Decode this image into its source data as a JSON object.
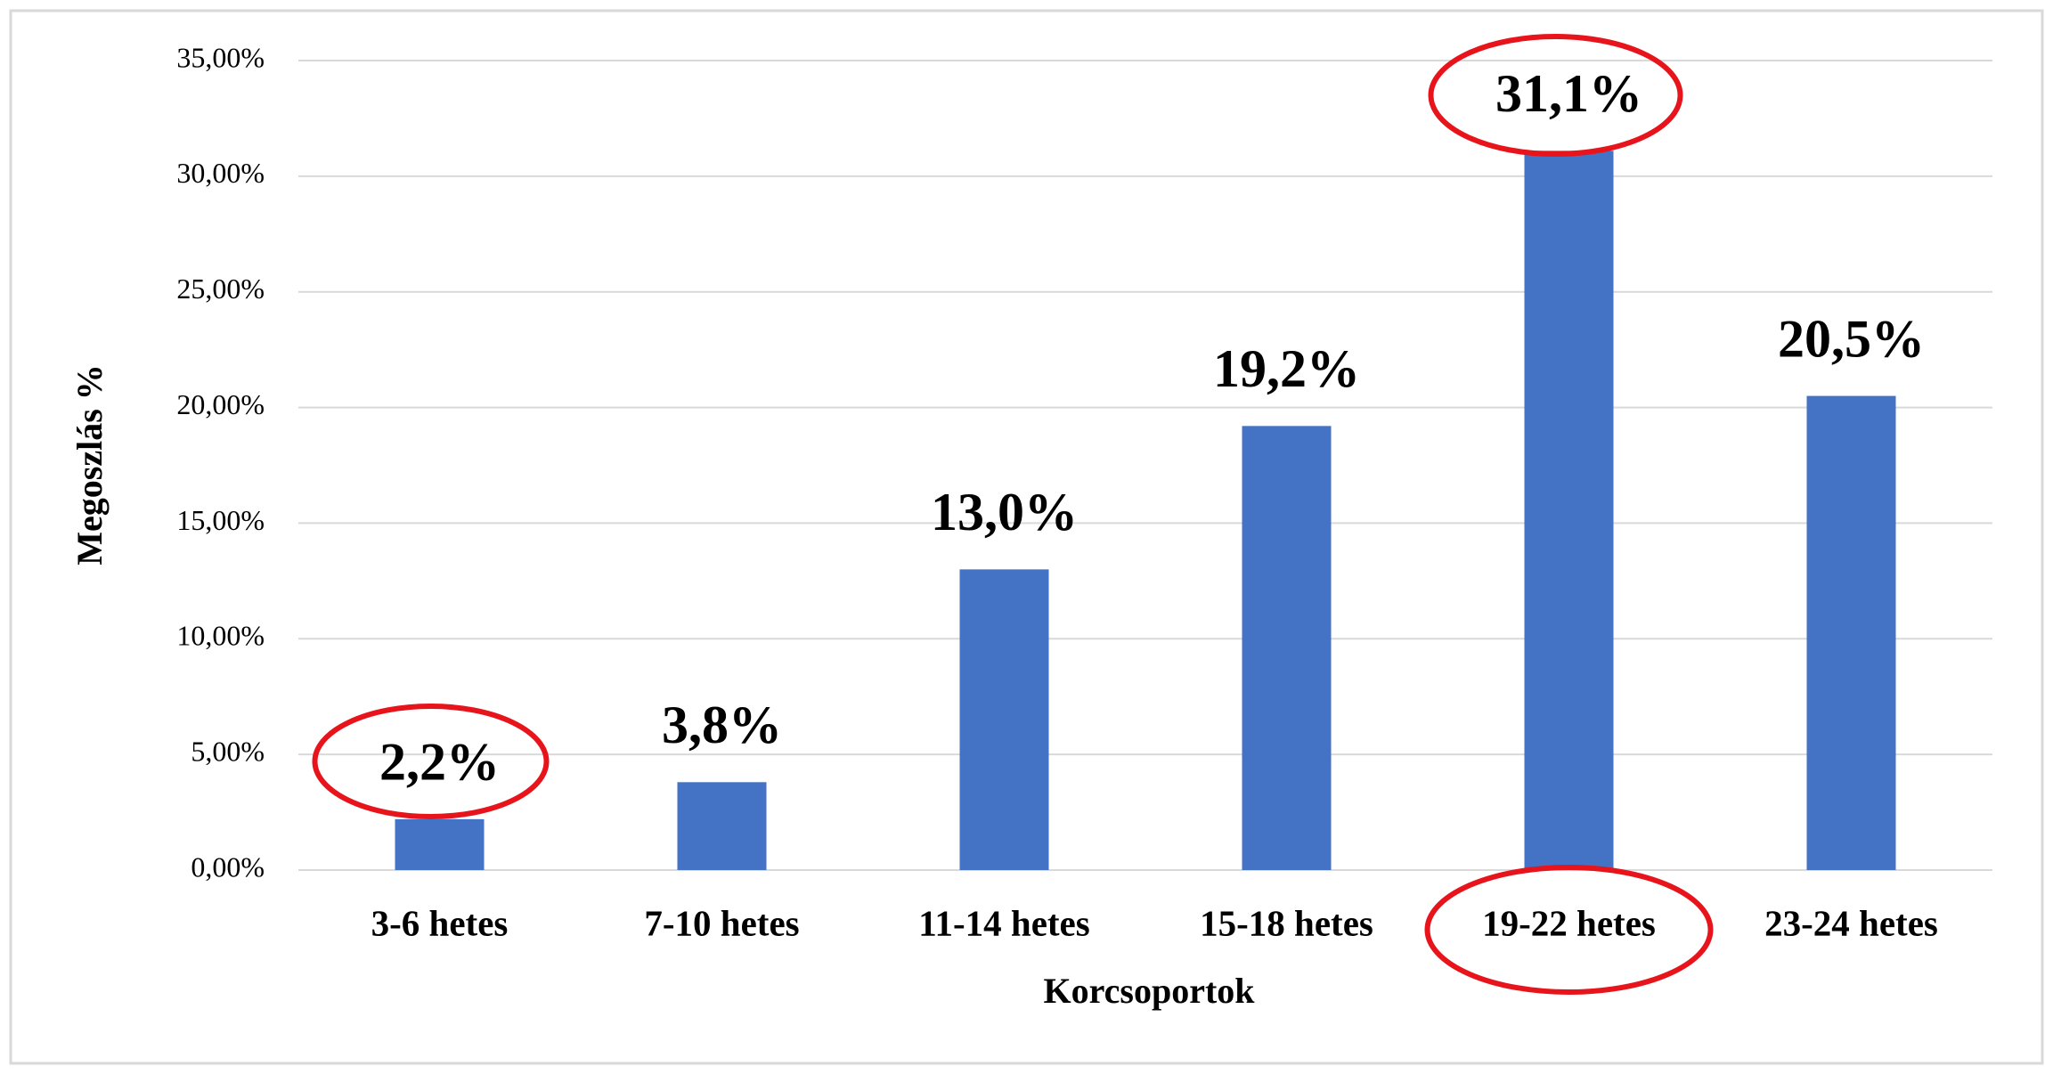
{
  "chart_data": {
    "type": "bar",
    "x_label": "Korcsoportok",
    "y_label": "Megoszlás %",
    "categories": [
      "3-6 hetes",
      "7-10 hetes",
      "11-14 hetes",
      "15-18 hetes",
      "19-22 hetes",
      "23-24 hetes"
    ],
    "values": [
      2.2,
      3.8,
      13.0,
      19.2,
      31.1,
      20.5
    ],
    "value_labels": [
      "2,2%",
      "3,8%",
      "13,0%",
      "19,2%",
      "31,1%",
      "20,5%"
    ],
    "color": "#4472c4",
    "ylim": [
      0,
      35
    ],
    "yticks": [
      {
        "value": 0,
        "label": "0,00%"
      },
      {
        "value": 5,
        "label": "5,00%"
      },
      {
        "value": 10,
        "label": "10,00%"
      },
      {
        "value": 15,
        "label": "15,00%"
      },
      {
        "value": 20,
        "label": "20,00%"
      },
      {
        "value": 25,
        "label": "25,00%"
      },
      {
        "value": 30,
        "label": "30,00%"
      },
      {
        "value": 35,
        "label": "35,00%"
      }
    ],
    "grid": true
  }
}
